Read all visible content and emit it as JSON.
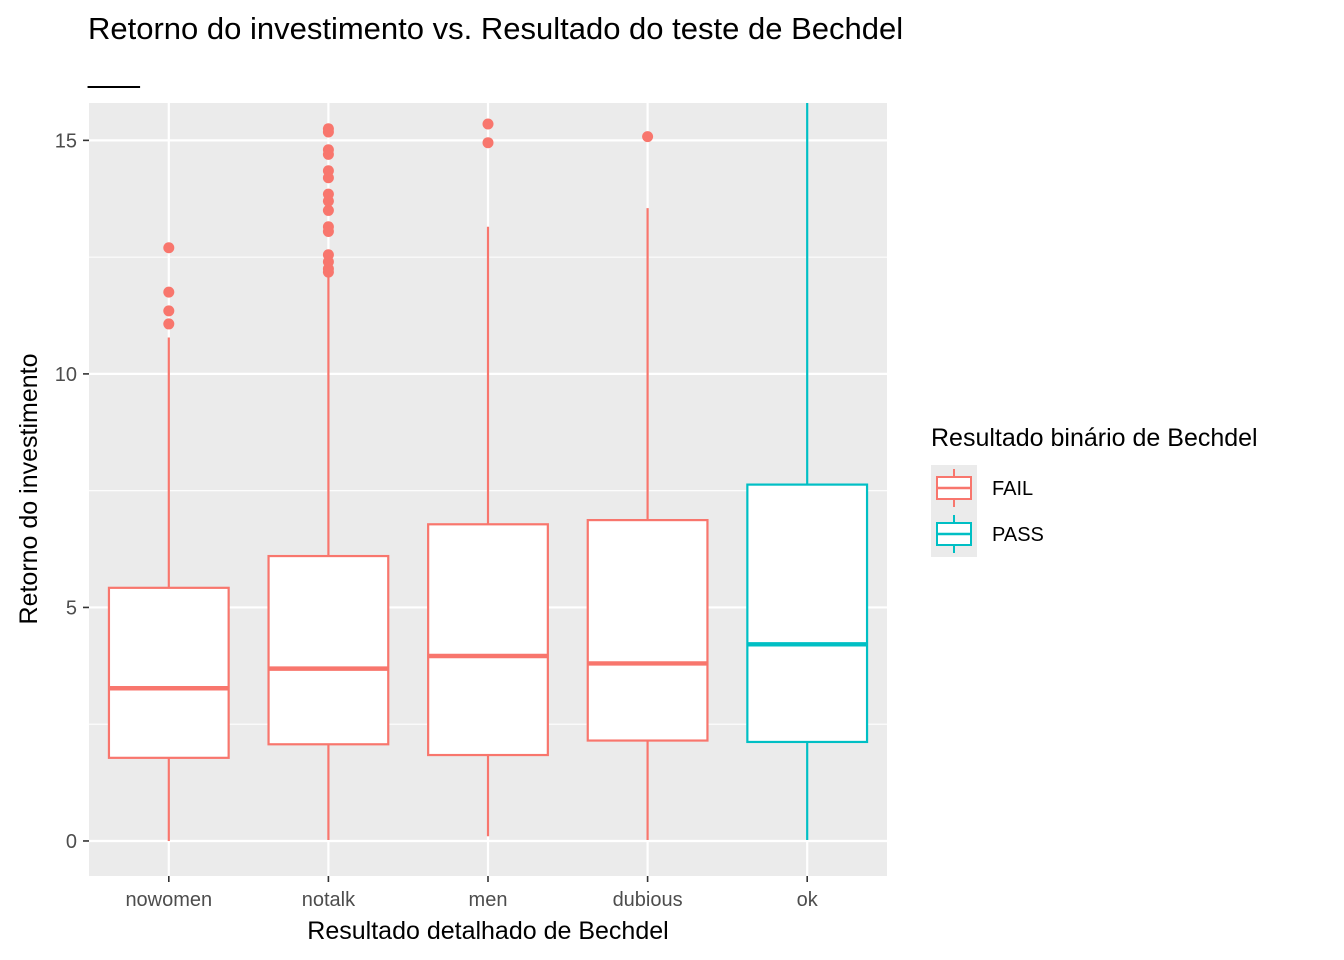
{
  "chart_data": {
    "type": "boxplot",
    "title": "Retorno do investimento vs. Resultado do teste de Bechdel",
    "subtitle_mark": "___",
    "xlabel": "Resultado detalhado de Bechdel",
    "ylabel": "Retorno do investimento",
    "ylim": [
      -0.75,
      15.8
    ],
    "y_ticks": [
      0,
      5,
      10,
      15
    ],
    "y_tick_labels": [
      "0",
      "5",
      "10",
      "15"
    ],
    "grid": true,
    "legend": {
      "title": "Resultado binário de Bechdel",
      "placement": "right",
      "entries": [
        {
          "label": "FAIL",
          "color": "#F8766D"
        },
        {
          "label": "PASS",
          "color": "#00BFC4"
        }
      ]
    },
    "categories": [
      "nowomen",
      "notalk",
      "men",
      "dubious",
      "ok"
    ],
    "boxes": [
      {
        "category": "nowomen",
        "group": "FAIL",
        "lower_whisker": 0.0,
        "q1": 1.78,
        "median": 3.27,
        "q3": 5.42,
        "upper_whisker": 10.78,
        "outliers": [
          11.07,
          11.35,
          11.75,
          12.7
        ]
      },
      {
        "category": "notalk",
        "group": "FAIL",
        "lower_whisker": 0.02,
        "q1": 2.07,
        "median": 3.69,
        "q3": 6.1,
        "upper_whisker": 12.1,
        "outliers": [
          12.18,
          12.25,
          12.4,
          12.55,
          13.05,
          13.15,
          13.5,
          13.7,
          13.85,
          14.2,
          14.35,
          14.7,
          14.8,
          15.18,
          15.25
        ]
      },
      {
        "category": "men",
        "group": "FAIL",
        "lower_whisker": 0.1,
        "q1": 1.84,
        "median": 3.96,
        "q3": 6.78,
        "upper_whisker": 13.15,
        "outliers": [
          14.95,
          15.35
        ]
      },
      {
        "category": "dubious",
        "group": "FAIL",
        "lower_whisker": 0.02,
        "q1": 2.15,
        "median": 3.8,
        "q3": 6.87,
        "upper_whisker": 13.55,
        "outliers": [
          15.08
        ]
      },
      {
        "category": "ok",
        "group": "PASS",
        "lower_whisker": 0.02,
        "q1": 2.12,
        "median": 4.21,
        "q3": 7.63,
        "upper_whisker": 15.8,
        "outliers": []
      }
    ]
  }
}
